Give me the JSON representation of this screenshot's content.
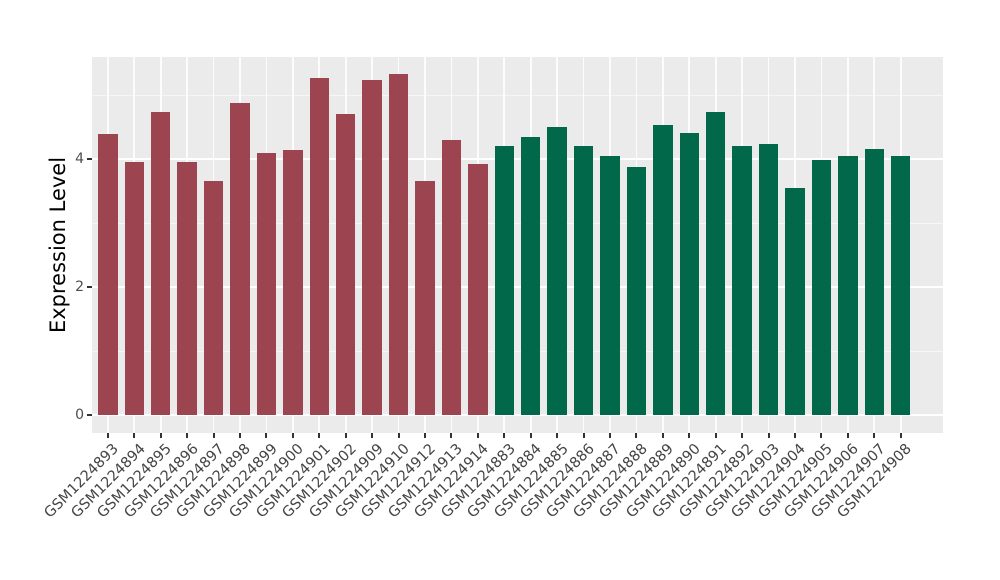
{
  "style": {
    "figure_bg": "#FFFFFF",
    "panel_bg": "#EBEBEB",
    "grid_major_color": "#FFFFFF",
    "grid_minor_color": "#F5F5F5",
    "axis_text_color": "#4D4D4D",
    "axis_title_color": "#000000"
  },
  "chart_data": {
    "type": "bar",
    "title": "",
    "xlabel": "",
    "ylabel": "Expression Level",
    "ylim": [
      0,
      5.6
    ],
    "ytick_values": [
      0,
      2,
      4
    ],
    "ytick_minor_values": [
      1,
      3,
      5
    ],
    "grid": "white major+minor horizontal lines and white vertical line at each category, on gray panel",
    "legend_position": "none",
    "x_label_rotation_deg": 45,
    "group_colors": {
      "groupA": "#9C4551",
      "groupB": "#016849"
    },
    "bars": [
      {
        "label": "GSM1224893",
        "value": 4.39,
        "group": "groupA"
      },
      {
        "label": "GSM1224894",
        "value": 3.95,
        "group": "groupA"
      },
      {
        "label": "GSM1224895",
        "value": 4.73,
        "group": "groupA"
      },
      {
        "label": "GSM1224896",
        "value": 3.96,
        "group": "groupA"
      },
      {
        "label": "GSM1224897",
        "value": 3.66,
        "group": "groupA"
      },
      {
        "label": "GSM1224898",
        "value": 4.88,
        "group": "groupA"
      },
      {
        "label": "GSM1224899",
        "value": 4.1,
        "group": "groupA"
      },
      {
        "label": "GSM1224900",
        "value": 4.14,
        "group": "groupA"
      },
      {
        "label": "GSM1224901",
        "value": 5.27,
        "group": "groupA"
      },
      {
        "label": "GSM1224902",
        "value": 4.7,
        "group": "groupA"
      },
      {
        "label": "GSM1224909",
        "value": 5.23,
        "group": "groupA"
      },
      {
        "label": "GSM1224910",
        "value": 5.33,
        "group": "groupA"
      },
      {
        "label": "GSM1224912",
        "value": 3.66,
        "group": "groupA"
      },
      {
        "label": "GSM1224913",
        "value": 4.3,
        "group": "groupA"
      },
      {
        "label": "GSM1224914",
        "value": 3.92,
        "group": "groupA"
      },
      {
        "label": "GSM1224883",
        "value": 4.2,
        "group": "groupB"
      },
      {
        "label": "GSM1224884",
        "value": 4.34,
        "group": "groupB"
      },
      {
        "label": "GSM1224885",
        "value": 4.5,
        "group": "groupB"
      },
      {
        "label": "GSM1224886",
        "value": 4.21,
        "group": "groupB"
      },
      {
        "label": "GSM1224887",
        "value": 4.04,
        "group": "groupB"
      },
      {
        "label": "GSM1224888",
        "value": 3.88,
        "group": "groupB"
      },
      {
        "label": "GSM1224889",
        "value": 4.53,
        "group": "groupB"
      },
      {
        "label": "GSM1224890",
        "value": 4.4,
        "group": "groupB"
      },
      {
        "label": "GSM1224891",
        "value": 4.74,
        "group": "groupB"
      },
      {
        "label": "GSM1224892",
        "value": 4.2,
        "group": "groupB"
      },
      {
        "label": "GSM1224903",
        "value": 4.23,
        "group": "groupB"
      },
      {
        "label": "GSM1224904",
        "value": 3.54,
        "group": "groupB"
      },
      {
        "label": "GSM1224905",
        "value": 3.99,
        "group": "groupB"
      },
      {
        "label": "GSM1224906",
        "value": 4.04,
        "group": "groupB"
      },
      {
        "label": "GSM1224907",
        "value": 4.15,
        "group": "groupB"
      },
      {
        "label": "GSM1224908",
        "value": 4.04,
        "group": "groupB"
      }
    ]
  }
}
